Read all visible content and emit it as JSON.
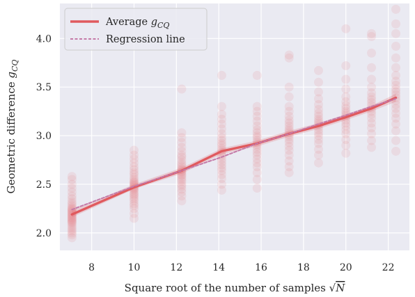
{
  "chart_data": {
    "type": "line",
    "xlabel": "Square root of the number of samples",
    "xlabel_symbol": "√N",
    "ylabel": "Geometric difference",
    "ylabel_symbol": "g",
    "ylabel_subscript": "CQ",
    "x_ticks": [
      "8",
      "10",
      "12",
      "14",
      "16",
      "18",
      "20",
      "22"
    ],
    "y_ticks": [
      "2.0",
      "2.5",
      "3.0",
      "3.5",
      "4.0"
    ],
    "xlim": [
      6.5,
      23.0
    ],
    "ylim": [
      1.82,
      4.36
    ],
    "grid": true,
    "legend_position": "top-left",
    "x": [
      7.07,
      10.0,
      12.25,
      14.14,
      15.81,
      17.32,
      18.71,
      20.0,
      21.21,
      22.36
    ],
    "series": [
      {
        "name": "Average",
        "name_symbol": "g",
        "name_subscript": "CQ",
        "style": "solid",
        "color": "#e05a5e",
        "values": [
          2.19,
          2.47,
          2.64,
          2.84,
          2.92,
          3.02,
          3.1,
          3.19,
          3.28,
          3.39
        ],
        "band_lower": [
          2.16,
          2.45,
          2.61,
          2.81,
          2.89,
          2.99,
          3.07,
          3.16,
          3.25,
          3.35
        ],
        "band_upper": [
          2.23,
          2.5,
          2.67,
          2.87,
          2.95,
          3.05,
          3.13,
          3.22,
          3.31,
          3.43
        ]
      },
      {
        "name": "Regression line",
        "style": "dashed",
        "color": "#c47aa8",
        "values": [
          2.24,
          2.48,
          2.64,
          2.78,
          2.92,
          3.02,
          3.12,
          3.21,
          3.3,
          3.38
        ]
      }
    ],
    "scatter_color": "#e8888c",
    "scatter_samples": [
      {
        "x": 7.07,
        "values": [
          1.95,
          1.98,
          2.0,
          2.02,
          2.04,
          2.06,
          2.08,
          2.1,
          2.11,
          2.12,
          2.13,
          2.14,
          2.15,
          2.16,
          2.17,
          2.18,
          2.19,
          2.2,
          2.21,
          2.22,
          2.23,
          2.24,
          2.25,
          2.26,
          2.28,
          2.3,
          2.32,
          2.35,
          2.38,
          2.42,
          2.46,
          2.5,
          2.55,
          2.58
        ]
      },
      {
        "x": 10.0,
        "values": [
          2.15,
          2.2,
          2.25,
          2.28,
          2.3,
          2.33,
          2.35,
          2.37,
          2.39,
          2.4,
          2.42,
          2.44,
          2.45,
          2.46,
          2.47,
          2.48,
          2.49,
          2.5,
          2.51,
          2.52,
          2.53,
          2.55,
          2.57,
          2.6,
          2.62,
          2.65,
          2.68,
          2.72,
          2.76,
          2.8,
          2.85
        ]
      },
      {
        "x": 12.25,
        "values": [
          2.33,
          2.38,
          2.42,
          2.45,
          2.48,
          2.5,
          2.53,
          2.55,
          2.57,
          2.59,
          2.6,
          2.62,
          2.63,
          2.64,
          2.65,
          2.66,
          2.68,
          2.7,
          2.72,
          2.75,
          2.78,
          2.8,
          2.84,
          2.88,
          2.93,
          2.98,
          3.03,
          3.48
        ]
      },
      {
        "x": 14.14,
        "values": [
          2.44,
          2.5,
          2.56,
          2.6,
          2.64,
          2.67,
          2.7,
          2.73,
          2.76,
          2.79,
          2.81,
          2.83,
          2.85,
          2.87,
          2.9,
          2.92,
          2.95,
          2.98,
          3.02,
          3.07,
          3.12,
          3.17,
          3.22,
          3.3,
          3.62
        ]
      },
      {
        "x": 15.81,
        "values": [
          2.46,
          2.55,
          2.62,
          2.68,
          2.72,
          2.76,
          2.8,
          2.83,
          2.86,
          2.89,
          2.91,
          2.93,
          2.95,
          2.98,
          3.0,
          3.03,
          3.06,
          3.1,
          3.15,
          3.2,
          3.25,
          3.3,
          3.62
        ]
      },
      {
        "x": 17.32,
        "values": [
          2.62,
          2.68,
          2.74,
          2.8,
          2.85,
          2.89,
          2.93,
          2.96,
          2.99,
          3.01,
          3.03,
          3.05,
          3.07,
          3.1,
          3.13,
          3.16,
          3.2,
          3.25,
          3.3,
          3.4,
          3.5,
          3.8,
          3.83
        ]
      },
      {
        "x": 18.71,
        "values": [
          2.72,
          2.8,
          2.86,
          2.92,
          2.96,
          3.0,
          3.03,
          3.06,
          3.09,
          3.11,
          3.13,
          3.15,
          3.17,
          3.2,
          3.23,
          3.27,
          3.32,
          3.38,
          3.45,
          3.55,
          3.67
        ]
      },
      {
        "x": 20.0,
        "values": [
          2.82,
          2.9,
          2.96,
          3.02,
          3.06,
          3.1,
          3.13,
          3.16,
          3.19,
          3.21,
          3.23,
          3.25,
          3.28,
          3.31,
          3.35,
          3.4,
          3.48,
          3.58,
          3.72,
          4.1
        ]
      },
      {
        "x": 21.21,
        "values": [
          2.88,
          2.95,
          3.02,
          3.08,
          3.13,
          3.18,
          3.22,
          3.25,
          3.28,
          3.31,
          3.34,
          3.37,
          3.4,
          3.44,
          3.5,
          3.58,
          3.7,
          3.85,
          4.02,
          4.05
        ]
      },
      {
        "x": 22.36,
        "values": [
          2.84,
          2.95,
          3.05,
          3.12,
          3.18,
          3.23,
          3.28,
          3.32,
          3.36,
          3.39,
          3.42,
          3.45,
          3.48,
          3.52,
          3.56,
          3.62,
          3.7,
          3.8,
          3.92,
          4.05,
          4.15,
          4.3
        ]
      }
    ]
  }
}
